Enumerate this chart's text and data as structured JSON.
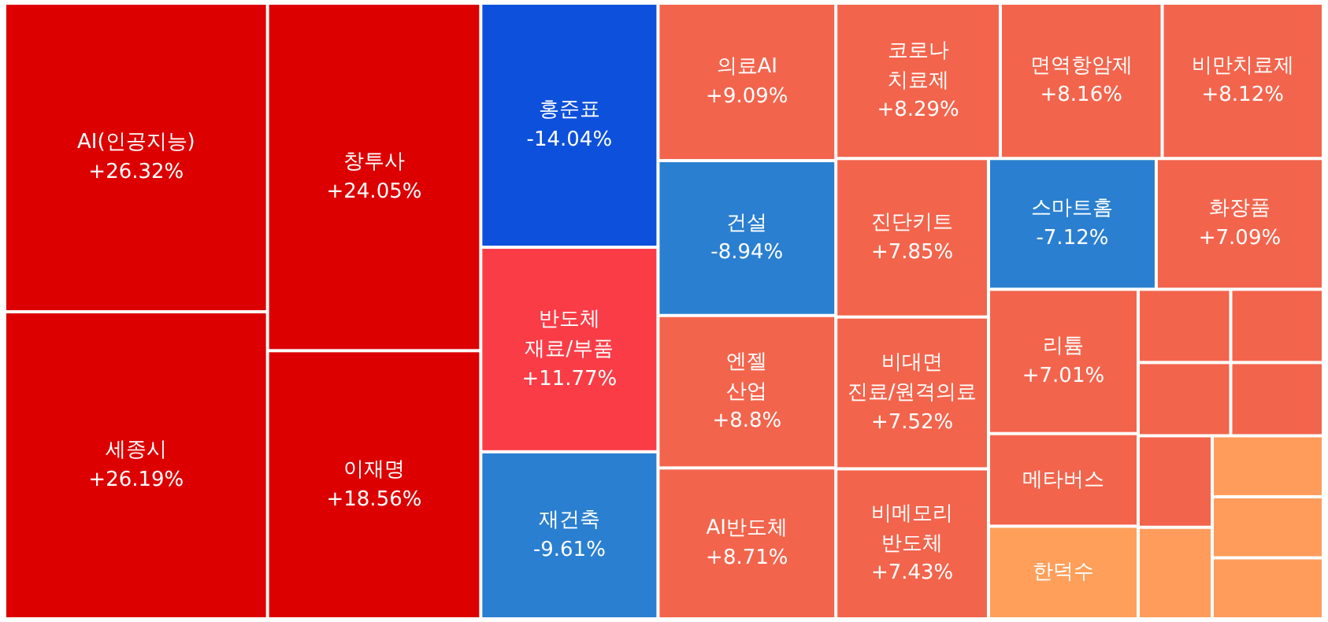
{
  "chart_data": {
    "type": "other",
    "categories": [
      "AI(인공지능)",
      "세종시",
      "창투사",
      "이재명",
      "홍준표",
      "반도체 재료/부품",
      "재건축",
      "의료AI",
      "건설",
      "엔젤 산업",
      "AI반도체",
      "코로나 치료제",
      "면역항암제",
      "비만치료제",
      "진단키트",
      "비대면 진료/원격의료",
      "비메모리 반도체",
      "스마트홈",
      "화장품",
      "리튬",
      "메타버스",
      "한덕수",
      null,
      null,
      null,
      null,
      null,
      null,
      null,
      null,
      null
    ],
    "values": [
      26.32,
      26.19,
      24.05,
      18.56,
      -14.04,
      11.77,
      -9.61,
      9.09,
      -8.94,
      8.8,
      8.71,
      8.29,
      8.16,
      8.12,
      7.85,
      7.52,
      7.43,
      -7.12,
      7.09,
      7.01,
      null,
      null,
      null,
      null,
      null,
      null,
      null,
      null,
      null,
      null,
      null
    ],
    "value_labels": [
      "+26.32%",
      "+26.19%",
      "+24.05%",
      "+18.56%",
      "-14.04%",
      "+11.77%",
      "-9.61%",
      "+9.09%",
      "-8.94%",
      "+8.8%",
      "+8.71%",
      "+8.29%",
      "+8.16%",
      "+8.12%",
      "+7.85%",
      "+7.52%",
      "+7.43%",
      "-7.12%",
      "+7.09%",
      "+7.01%",
      null,
      null,
      null,
      null,
      null,
      null,
      null,
      null,
      null,
      null,
      null
    ],
    "colors": [
      "#dc0000",
      "#dc0000",
      "#dc0000",
      "#dc0000",
      "#0d50db",
      "#fa3c46",
      "#2a7fd0",
      "#f3644c",
      "#2a7fd0",
      "#f3644c",
      "#f3644c",
      "#f3644c",
      "#f3644c",
      "#f3644c",
      "#f3644c",
      "#f3644c",
      "#f3644c",
      "#2a7fd0",
      "#f3644c",
      "#f3644c",
      "#f3644c",
      "#ff9f5a",
      "#f3644c",
      "#f3644c",
      "#f3644c",
      "#f3644c",
      "#f3644c",
      "#ff9c5c",
      "#ff9c5c",
      "#ff9c5c",
      "#ff9c5c"
    ]
  }
}
